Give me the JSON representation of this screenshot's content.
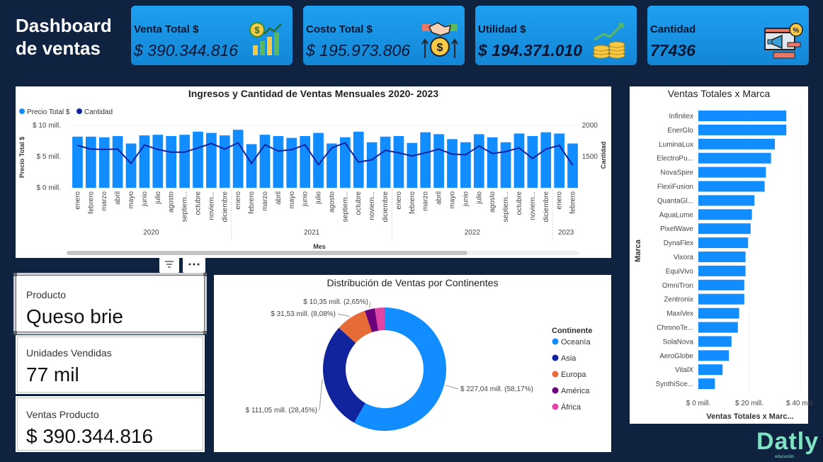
{
  "dashboard_title": "Dashboard de ventas",
  "kpis": [
    {
      "label": "Venta Total $",
      "value": "$ 390.344.816",
      "icon": "money-chart-icon"
    },
    {
      "label": "Costo Total $",
      "value": "$ 195.973.806",
      "icon": "handshake-coin-icon"
    },
    {
      "label": "Utilidad $",
      "value": "$ 194.371.010",
      "icon": "coins-growth-icon"
    },
    {
      "label": "Cantidad",
      "value": "77436",
      "icon": "marketing-megaphone-icon"
    }
  ],
  "cards": [
    {
      "label": "Producto",
      "value": "Queso brie"
    },
    {
      "label": "Unidades Vendidas",
      "value": "77 mil"
    },
    {
      "label": "Ventas Producto",
      "value": "$ 390.344.816"
    }
  ],
  "brand": {
    "name": "Datly",
    "tagline": "educación"
  },
  "colors": {
    "background": "#0f2240",
    "bar": "#118dff",
    "line": "#12239e",
    "kpi": "#1a96e8"
  },
  "chart_data": [
    {
      "type": "bar",
      "title": "Ingresos y Cantidad de Ventas Mensuales 2020- 2023",
      "xlabel": "Mes",
      "ylabel": "Precio Total $",
      "y2label": "Cantidad",
      "legend_position": "top-left",
      "legend": [
        "Precio Total $",
        "Cantidad"
      ],
      "y_ticks": [
        "$ 0 mill.",
        "$ 5 mill.",
        "$ 10 mill."
      ],
      "y2_ticks": [
        "1500",
        "2000"
      ],
      "ylim": [
        0,
        10
      ],
      "y2lim": [
        1000,
        2000
      ],
      "months": [
        "enero",
        "febrero",
        "marzo",
        "abril",
        "mayo",
        "junio",
        "julio",
        "agosto",
        "septiem...",
        "octubre",
        "noviem...",
        "diciembre"
      ],
      "years": [
        {
          "label": "2020",
          "count": 12
        },
        {
          "label": "2021",
          "count": 12
        },
        {
          "label": "2022",
          "count": 12
        },
        {
          "label": "2023",
          "count": 2
        }
      ],
      "series": [
        {
          "name": "Precio Total $",
          "type": "bar",
          "values": [
            8.2,
            8.2,
            8.1,
            8.3,
            7.1,
            8.4,
            8.5,
            8.3,
            8.5,
            9.0,
            8.8,
            8.4,
            9.3,
            7.0,
            8.5,
            8.3,
            8.0,
            8.3,
            8.8,
            7.1,
            8.1,
            9.0,
            7.3,
            8.2,
            8.3,
            7.2,
            8.9,
            8.6,
            7.8,
            7.3,
            8.6,
            8.1,
            7.3,
            8.7,
            8.3,
            8.9,
            8.7,
            7.1
          ]
        },
        {
          "name": "Cantidad",
          "type": "line",
          "values": [
            1680,
            1620,
            1615,
            1620,
            1390,
            1685,
            1615,
            1570,
            1570,
            1640,
            1710,
            1620,
            1720,
            1390,
            1690,
            1590,
            1610,
            1690,
            1370,
            1640,
            1720,
            1410,
            1450,
            1600,
            1560,
            1510,
            1560,
            1620,
            1540,
            1530,
            1670,
            1550,
            1580,
            1640,
            1470,
            1620,
            1680,
            1360
          ]
        }
      ]
    },
    {
      "type": "pie",
      "title": "Distribución de Ventas por Continentes",
      "legend_title": "Continente",
      "legend_position": "right",
      "slices": [
        {
          "name": "Oceanía",
          "value": 227.04,
          "label": "$ 227,04 mill. (58,17%)",
          "color": "#118dff"
        },
        {
          "name": "Asia",
          "value": 111.05,
          "label": "$ 111,05 mill. (28,45%)",
          "color": "#12239e"
        },
        {
          "name": "Europa",
          "value": 31.53,
          "label": "$ 31,53 mill. (8,08%)",
          "color": "#e66c37"
        },
        {
          "name": "América",
          "value": 10.35,
          "label": "$ 10,35 mill. (2,65%)",
          "color": "#6b007b"
        },
        {
          "name": "África",
          "value": 10.0,
          "label": "",
          "color": "#e044a7"
        }
      ]
    },
    {
      "type": "bar",
      "orientation": "horizontal",
      "title": "Ventas Totales x Marca",
      "xlabel": "Ventas Totales x Marc...",
      "ylabel": "Marca",
      "x_ticks": [
        "$ 0 mill.",
        "$ 20 mill.",
        "$ 40 mill."
      ],
      "xlim": [
        0,
        40
      ],
      "categories": [
        "Infinitex",
        "EnerGlo",
        "LuminaLux",
        "ElectroPu...",
        "NovaSpire",
        "FlexiFusion",
        "QuantaGl...",
        "AquaLume",
        "PixelWave",
        "DynaFlex",
        "Vixora",
        "EquiVivo",
        "OmniTron",
        "Zentronix",
        "MaxiVex",
        "ChronoTe...",
        "SolaNova",
        "AeroGlobe",
        "VitalX",
        "SynthiSce..."
      ],
      "values": [
        34.5,
        34.5,
        30.0,
        28.5,
        26.5,
        26.0,
        22.0,
        21.0,
        20.5,
        19.5,
        18.5,
        18.5,
        18.0,
        18.0,
        16.0,
        15.5,
        13.0,
        12.0,
        9.5,
        6.5
      ]
    }
  ]
}
